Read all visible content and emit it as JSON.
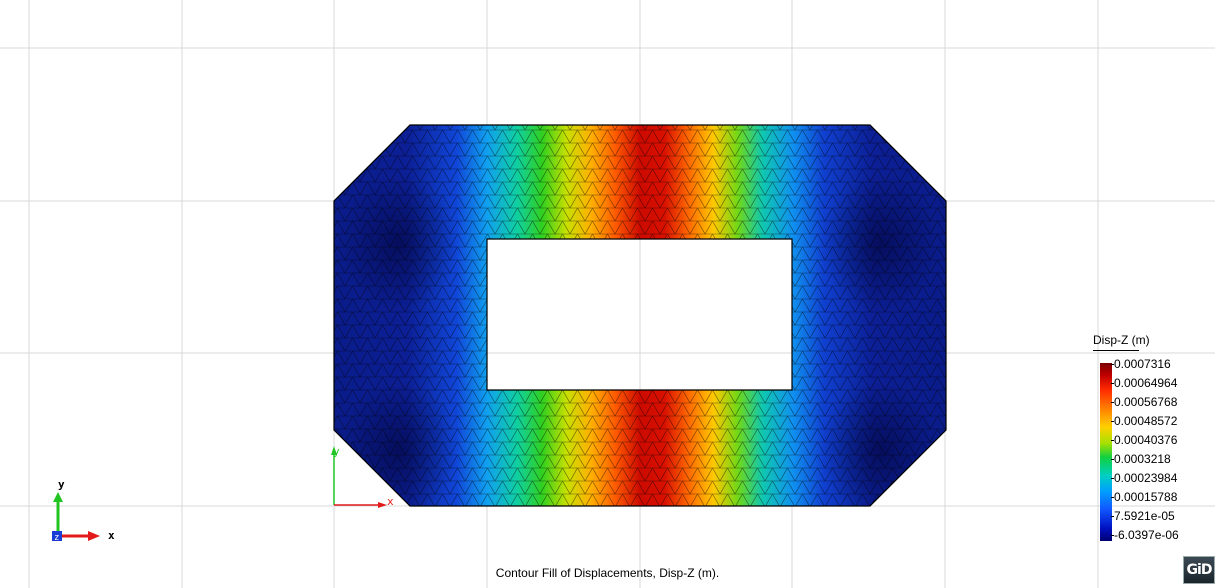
{
  "viewer": {
    "caption": "Contour Fill of Displacements, Disp-Z (m).",
    "logo_text": "GiD"
  },
  "axes_gizmo": {
    "corner": {
      "x_label": "x",
      "y_label": "y",
      "z_label": "z"
    },
    "model_origin": {
      "x_label": "x",
      "y_label": "y"
    }
  },
  "legend": {
    "title": "Disp-Z (m)",
    "values": [
      "0.0007316",
      "0.00064964",
      "0.00056768",
      "0.00048572",
      "0.00040376",
      "0.0003218",
      "0.00023984",
      "0.00015788",
      "7.5921e-05",
      "-6.0397e-06"
    ]
  },
  "colors": {
    "mesh_line": "#000000",
    "grid_line": "#d9d9d9",
    "axis_x": "#e31a1a",
    "axis_y": "#22c422",
    "axis_z": "#1a3bd6"
  }
}
